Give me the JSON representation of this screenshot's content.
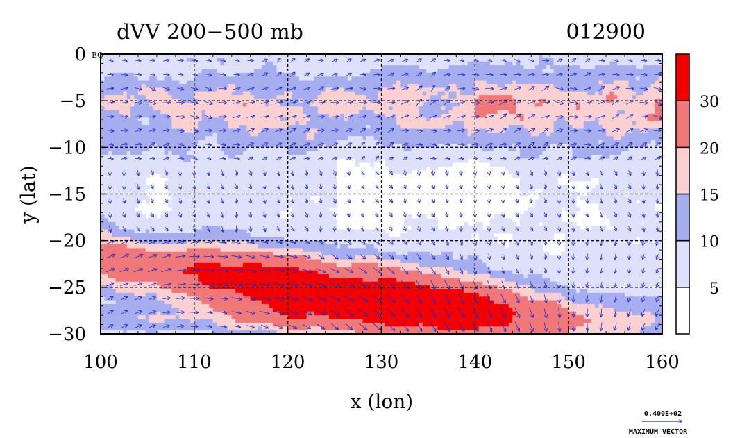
{
  "chart_data": {
    "type": "heatmap",
    "title": "dVV 200−500 mb",
    "date_label": "012900",
    "xlabel": "x (lon)",
    "ylabel": "y (lat)",
    "xlim": [
      100,
      160
    ],
    "ylim": [
      -30,
      0
    ],
    "x_ticks": [
      100,
      110,
      120,
      130,
      140,
      150,
      160
    ],
    "x_tick_labels": [
      "100",
      "110",
      "120",
      "130",
      "140",
      "150",
      "160"
    ],
    "y_ticks": [
      0,
      -5,
      -10,
      -15,
      -20,
      -25,
      -30
    ],
    "y_tick_labels": [
      "0",
      "−5",
      "−10",
      "−15",
      "−20",
      "−25",
      "−30"
    ],
    "grid": true,
    "corner_label": "EQ",
    "colorbar": {
      "levels": [
        0,
        5,
        10,
        15,
        20,
        30,
        40
      ],
      "tick_values": [
        5,
        10,
        15,
        20,
        30
      ],
      "tick_labels": [
        "5",
        "10",
        "15",
        "20",
        "30"
      ],
      "colors": [
        "#ffffff",
        "#dfe1fb",
        "#a6aef0",
        "#fbd0d0",
        "#f07878",
        "#f40000"
      ]
    },
    "fields": {
      "jet_core": {
        "lon": [
          110,
          145
        ],
        "lat_center_at_110": -24,
        "lat_center_at_145": -28.5,
        "peak": 35
      },
      "northern_band": {
        "lat": [
          -2,
          -12
        ],
        "values_range": [
          10,
          22
        ]
      }
    },
    "vector_legend": {
      "value_label": "0.400E+02",
      "caption": "MAXIMUM VECTOR"
    }
  }
}
